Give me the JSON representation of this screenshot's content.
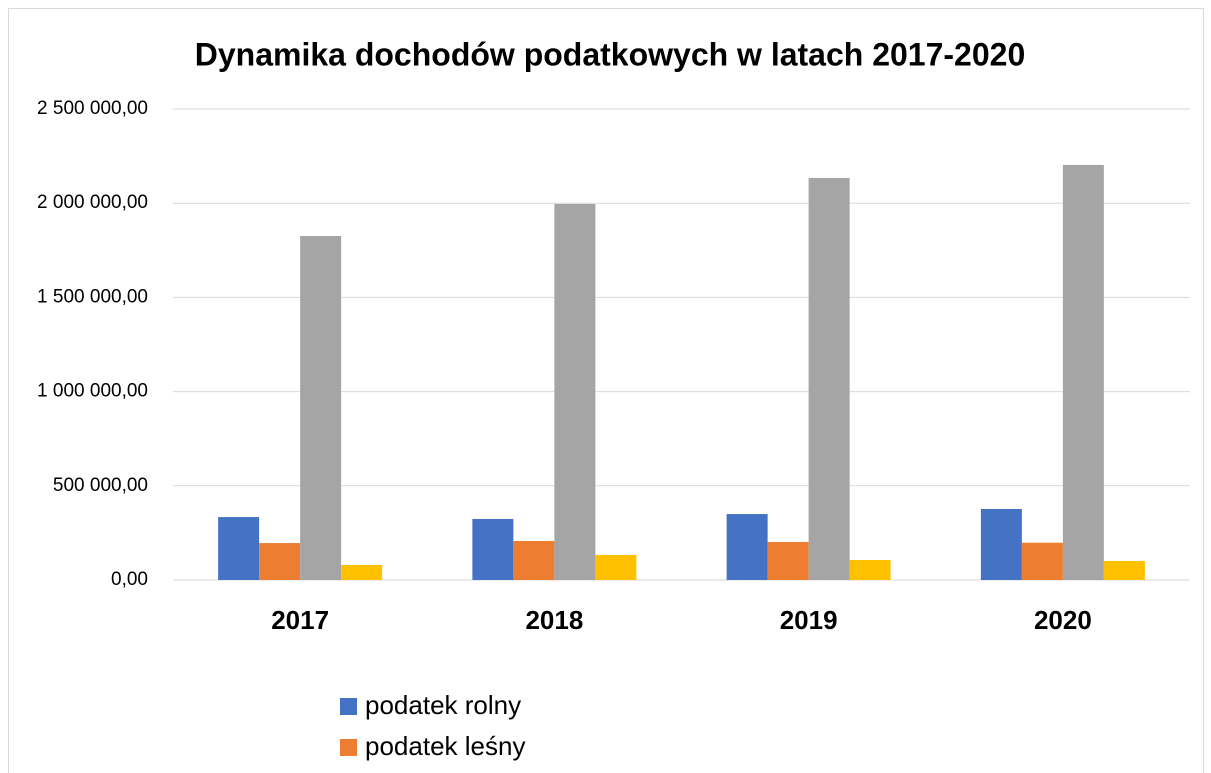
{
  "chart_data": {
    "type": "bar",
    "title": "Dynamika dochodów podatkowych w latach 2017-2020",
    "categories": [
      "2017",
      "2018",
      "2019",
      "2020"
    ],
    "series": [
      {
        "name": "podatek rolny",
        "color": "#4472c4",
        "values": [
          334000,
          324000,
          350000,
          377000
        ]
      },
      {
        "name": "podatek leśny",
        "color": "#ed7d31",
        "values": [
          196000,
          207000,
          202000,
          198000
        ]
      },
      {
        "color": "#a5a5a5",
        "values": [
          1826000,
          1996000,
          2134000,
          2203000
        ]
      },
      {
        "color": "#ffc000",
        "values": [
          80000,
          133000,
          106000,
          101000
        ]
      }
    ],
    "ylim": [
      0,
      2500000
    ],
    "yticks": [
      {
        "value": 0,
        "label": "0,00"
      },
      {
        "value": 500000,
        "label": "500 000,00"
      },
      {
        "value": 1000000,
        "label": "1 000 000,00"
      },
      {
        "value": 1500000,
        "label": "1 500 000,00"
      },
      {
        "value": 2000000,
        "label": "2 000 000,00"
      },
      {
        "value": 2500000,
        "label": "2 500 000,00"
      }
    ],
    "grid": true
  }
}
